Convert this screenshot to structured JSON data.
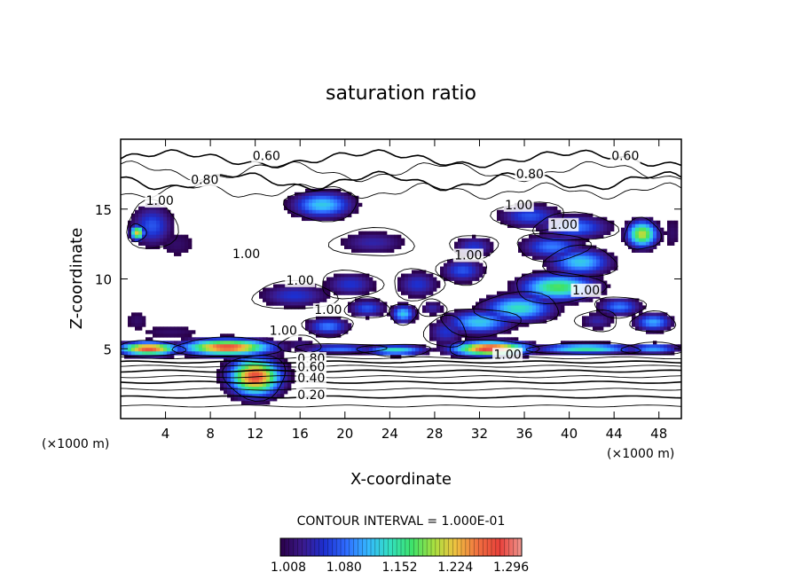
{
  "chart_data": {
    "type": "heatmap",
    "title": "saturation ratio",
    "xlabel": "X-coordinate",
    "ylabel": "Z-coordinate",
    "x_unit_left": "(×1000 m)",
    "x_unit_right": "(×1000 m)",
    "xlim": [
      0,
      50
    ],
    "ylim": [
      0,
      20
    ],
    "xticks": [
      4,
      8,
      12,
      16,
      20,
      24,
      28,
      32,
      36,
      40,
      44,
      48
    ],
    "yticks": [
      5,
      10,
      15
    ],
    "contour_interval_text": "CONTOUR INTERVAL = 1.000E-01",
    "colorbar": {
      "min": 1.008,
      "max": 1.32,
      "tick_values": [
        1.008,
        1.08,
        1.152,
        1.224,
        1.296
      ],
      "tick_labels": [
        "1.008",
        "1.080",
        "1.152",
        "1.224",
        "1.296"
      ],
      "colors": [
        "#2a0048",
        "#3b1a8c",
        "#1d2fd0",
        "#2f6cff",
        "#35b8ff",
        "#33e0c0",
        "#3de26a",
        "#a8e040",
        "#f0c040",
        "#f07040",
        "#e8403a",
        "#f09890"
      ]
    },
    "contour_labels": [
      {
        "text": "0.60",
        "x": 13,
        "z": 18.5
      },
      {
        "text": "0.60",
        "x": 45,
        "z": 18.5
      },
      {
        "text": "0.80",
        "x": 7.5,
        "z": 16.8
      },
      {
        "text": "0.80",
        "x": 36.5,
        "z": 17.2
      },
      {
        "text": "1.00",
        "x": 3.5,
        "z": 15.3
      },
      {
        "text": "1.00",
        "x": 35.5,
        "z": 15.0
      },
      {
        "text": "1.00",
        "x": 39.5,
        "z": 13.6
      },
      {
        "text": "1.00",
        "x": 11.2,
        "z": 11.5
      },
      {
        "text": "1.00",
        "x": 31.0,
        "z": 11.4
      },
      {
        "text": "1.00",
        "x": 16.0,
        "z": 9.6
      },
      {
        "text": "1.00",
        "x": 41.5,
        "z": 8.9
      },
      {
        "text": "1.00",
        "x": 18.5,
        "z": 7.5
      },
      {
        "text": "1.00",
        "x": 14.5,
        "z": 6.0
      },
      {
        "text": "1.00",
        "x": 34.5,
        "z": 4.3
      },
      {
        "text": "0.80",
        "x": 17.0,
        "z": 4.0
      },
      {
        "text": "0.60",
        "x": 17.0,
        "z": 3.4
      },
      {
        "text": "0.40",
        "x": 17.0,
        "z": 2.6
      },
      {
        "text": "0.20",
        "x": 17.0,
        "z": 1.4
      }
    ],
    "supersaturated_regions": [
      {
        "x": 12,
        "z": 3.0,
        "sx": 2.2,
        "sz": 1.3,
        "a": 0.9
      },
      {
        "x": 18,
        "z": 15.3,
        "sx": 2.6,
        "sz": 0.9,
        "a": 0.45
      },
      {
        "x": 2.8,
        "z": 13.8,
        "sx": 1.8,
        "sz": 1.4,
        "a": 0.3
      },
      {
        "x": 1.5,
        "z": 13.3,
        "sx": 0.6,
        "sz": 0.5,
        "a": 0.75
      },
      {
        "x": 5,
        "z": 12.5,
        "sx": 2.0,
        "sz": 1.2,
        "a": 0.12
      },
      {
        "x": 22.5,
        "z": 12.6,
        "sx": 3.0,
        "sz": 0.8,
        "a": 0.2
      },
      {
        "x": 31.5,
        "z": 12.3,
        "sx": 1.7,
        "sz": 0.7,
        "a": 0.25
      },
      {
        "x": 26.5,
        "z": 9.6,
        "sx": 1.8,
        "sz": 0.9,
        "a": 0.25
      },
      {
        "x": 30.5,
        "z": 10.6,
        "sx": 1.8,
        "sz": 0.8,
        "a": 0.3
      },
      {
        "x": 36.5,
        "z": 14.5,
        "sx": 2.6,
        "sz": 0.8,
        "a": 0.3
      },
      {
        "x": 40.5,
        "z": 13.7,
        "sx": 3.0,
        "sz": 0.8,
        "a": 0.35
      },
      {
        "x": 46.5,
        "z": 13.2,
        "sx": 1.3,
        "sz": 0.9,
        "a": 0.7
      },
      {
        "x": 49.2,
        "z": 13.3,
        "sx": 1.0,
        "sz": 1.4,
        "a": 0.12
      },
      {
        "x": 38.5,
        "z": 12.3,
        "sx": 2.6,
        "sz": 0.8,
        "a": 0.35
      },
      {
        "x": 41,
        "z": 11.2,
        "sx": 2.6,
        "sz": 0.9,
        "a": 0.45
      },
      {
        "x": 39,
        "z": 9.4,
        "sx": 3.2,
        "sz": 0.9,
        "a": 0.6
      },
      {
        "x": 35.5,
        "z": 7.9,
        "sx": 3.0,
        "sz": 0.9,
        "a": 0.5
      },
      {
        "x": 32,
        "z": 6.9,
        "sx": 2.8,
        "sz": 0.8,
        "a": 0.45
      },
      {
        "x": 44.5,
        "z": 8.0,
        "sx": 1.8,
        "sz": 0.6,
        "a": 0.35
      },
      {
        "x": 47.5,
        "z": 6.9,
        "sx": 1.6,
        "sz": 0.6,
        "a": 0.4
      },
      {
        "x": 42.5,
        "z": 7.0,
        "sx": 1.5,
        "sz": 0.6,
        "a": 0.2
      },
      {
        "x": 15.5,
        "z": 8.8,
        "sx": 3.0,
        "sz": 0.8,
        "a": 0.25
      },
      {
        "x": 20.5,
        "z": 9.6,
        "sx": 2.2,
        "sz": 0.8,
        "a": 0.25
      },
      {
        "x": 22,
        "z": 7.9,
        "sx": 1.6,
        "sz": 0.6,
        "a": 0.3
      },
      {
        "x": 25.2,
        "z": 7.5,
        "sx": 1.0,
        "sz": 0.6,
        "a": 0.45
      },
      {
        "x": 27.8,
        "z": 7.9,
        "sx": 1.0,
        "sz": 0.5,
        "a": 0.2
      },
      {
        "x": 18.5,
        "z": 6.6,
        "sx": 1.8,
        "sz": 0.6,
        "a": 0.35
      },
      {
        "x": 16,
        "z": 5.3,
        "sx": 1.5,
        "sz": 0.5,
        "a": 0.15
      },
      {
        "x": 4.5,
        "z": 6.2,
        "sx": 3.5,
        "sz": 0.6,
        "a": 0.12
      },
      {
        "x": 1.5,
        "z": 7.0,
        "sx": 1.3,
        "sz": 0.9,
        "a": 0.12
      },
      {
        "x": 2.5,
        "z": 5.0,
        "sx": 2.5,
        "sz": 0.45,
        "a": 0.9
      },
      {
        "x": 9.5,
        "z": 5.1,
        "sx": 3.8,
        "sz": 0.55,
        "a": 0.9
      },
      {
        "x": 24.5,
        "z": 4.9,
        "sx": 2.6,
        "sz": 0.35,
        "a": 0.5
      },
      {
        "x": 33,
        "z": 5.0,
        "sx": 3.2,
        "sz": 0.5,
        "a": 0.95
      },
      {
        "x": 41.5,
        "z": 5.0,
        "sx": 4.0,
        "sz": 0.35,
        "a": 0.55
      },
      {
        "x": 47.5,
        "z": 5.0,
        "sx": 2.2,
        "sz": 0.35,
        "a": 0.4
      },
      {
        "x": 19.5,
        "z": 5.0,
        "sx": 3.2,
        "sz": 0.3,
        "a": 0.35
      },
      {
        "x": 29,
        "z": 6.2,
        "sx": 1.5,
        "sz": 0.9,
        "a": 0.25
      }
    ]
  }
}
